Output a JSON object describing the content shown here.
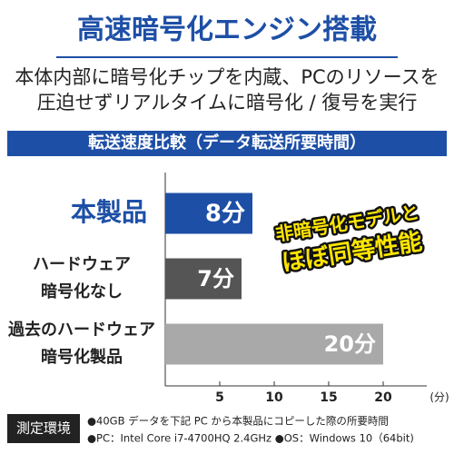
{
  "chart_data": {
    "type": "hbar",
    "title": "高速暗号化エンジン搭載",
    "subtitle": [
      "本体内部に暗号化チップを内蔵、PCのリソースを",
      "圧迫せずリアルタイムに暗号化 / 復号を実行"
    ],
    "chart_title": "転送速度比較（データ転送所要時間）",
    "categories": [
      [
        "本製品"
      ],
      [
        "ハードウェア",
        "暗号化なし"
      ],
      [
        "過去のハードウェア",
        "暗号化製品"
      ]
    ],
    "values": [
      8,
      7,
      20
    ],
    "value_labels": [
      "8分",
      "7分",
      "20分"
    ],
    "colors": [
      "#1d4fa6",
      "#555555",
      "#a9a9a9"
    ],
    "xlim": [
      0,
      24
    ],
    "xticks": [
      5,
      10,
      15,
      20
    ],
    "xlabel": "(分)",
    "annotation": [
      "非暗号化モデルと",
      "ほぼ同等性能"
    ],
    "footer_label": "測定環境",
    "footer_notes": [
      "●40GB データを下記 PC から本製品にコピーした際の所要時間",
      "●PC：Intel Core i7-4700HQ 2.4GHz ●OS：Windows 10（64bit)"
    ]
  }
}
